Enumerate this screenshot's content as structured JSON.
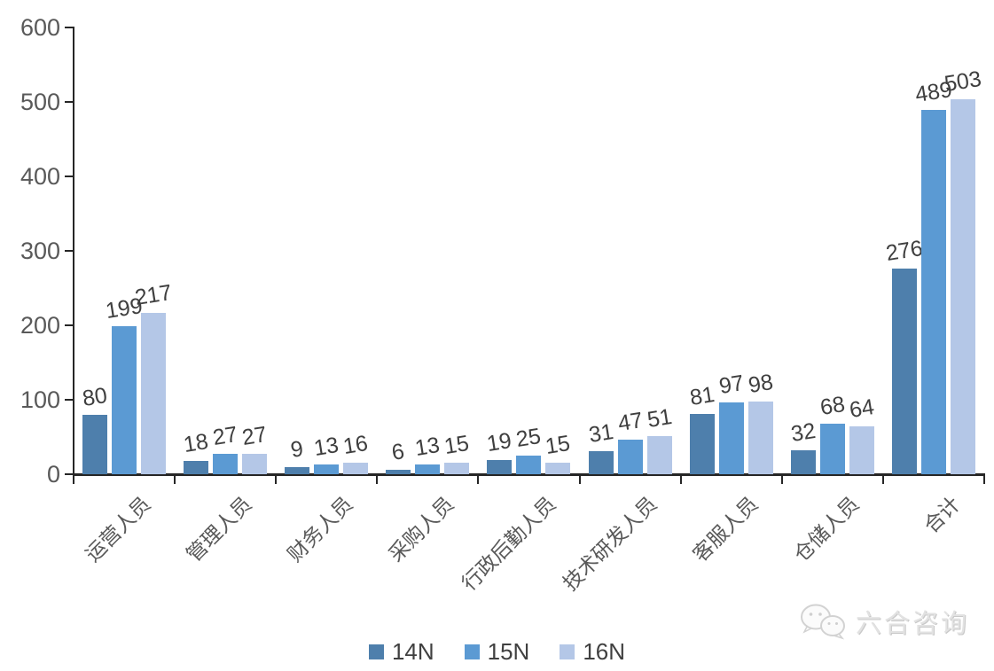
{
  "chart_data": {
    "type": "bar",
    "title": "",
    "xlabel": "",
    "ylabel": "",
    "categories": [
      "运营人员",
      "管理人员",
      "财务人员",
      "采购人员",
      "行政后勤人员",
      "技术研发人员",
      "客服人员",
      "仓储人员",
      "合计"
    ],
    "series": [
      {
        "name": "14N",
        "color": "#4E7FAC",
        "values": [
          80,
          18,
          9,
          6,
          19,
          31,
          81,
          32,
          276
        ]
      },
      {
        "name": "15N",
        "color": "#5B9AD3",
        "values": [
          199,
          27,
          13,
          13,
          25,
          47,
          97,
          68,
          489
        ]
      },
      {
        "name": "16N",
        "color": "#B4C7E7",
        "values": [
          217,
          27,
          16,
          15,
          15,
          51,
          98,
          64,
          503
        ]
      }
    ],
    "ylim": [
      0,
      600
    ],
    "yticks": [
      0,
      100,
      200,
      300,
      400,
      500,
      600
    ],
    "grid": false,
    "legend_position": "bottom",
    "bar_value_labels": true
  },
  "watermark": {
    "icon": "wechat-icon",
    "text": "六合咨询"
  },
  "style_colors": {
    "axis": "#262626",
    "tick_label": "#595959",
    "value_label": "#3f3f3f"
  }
}
